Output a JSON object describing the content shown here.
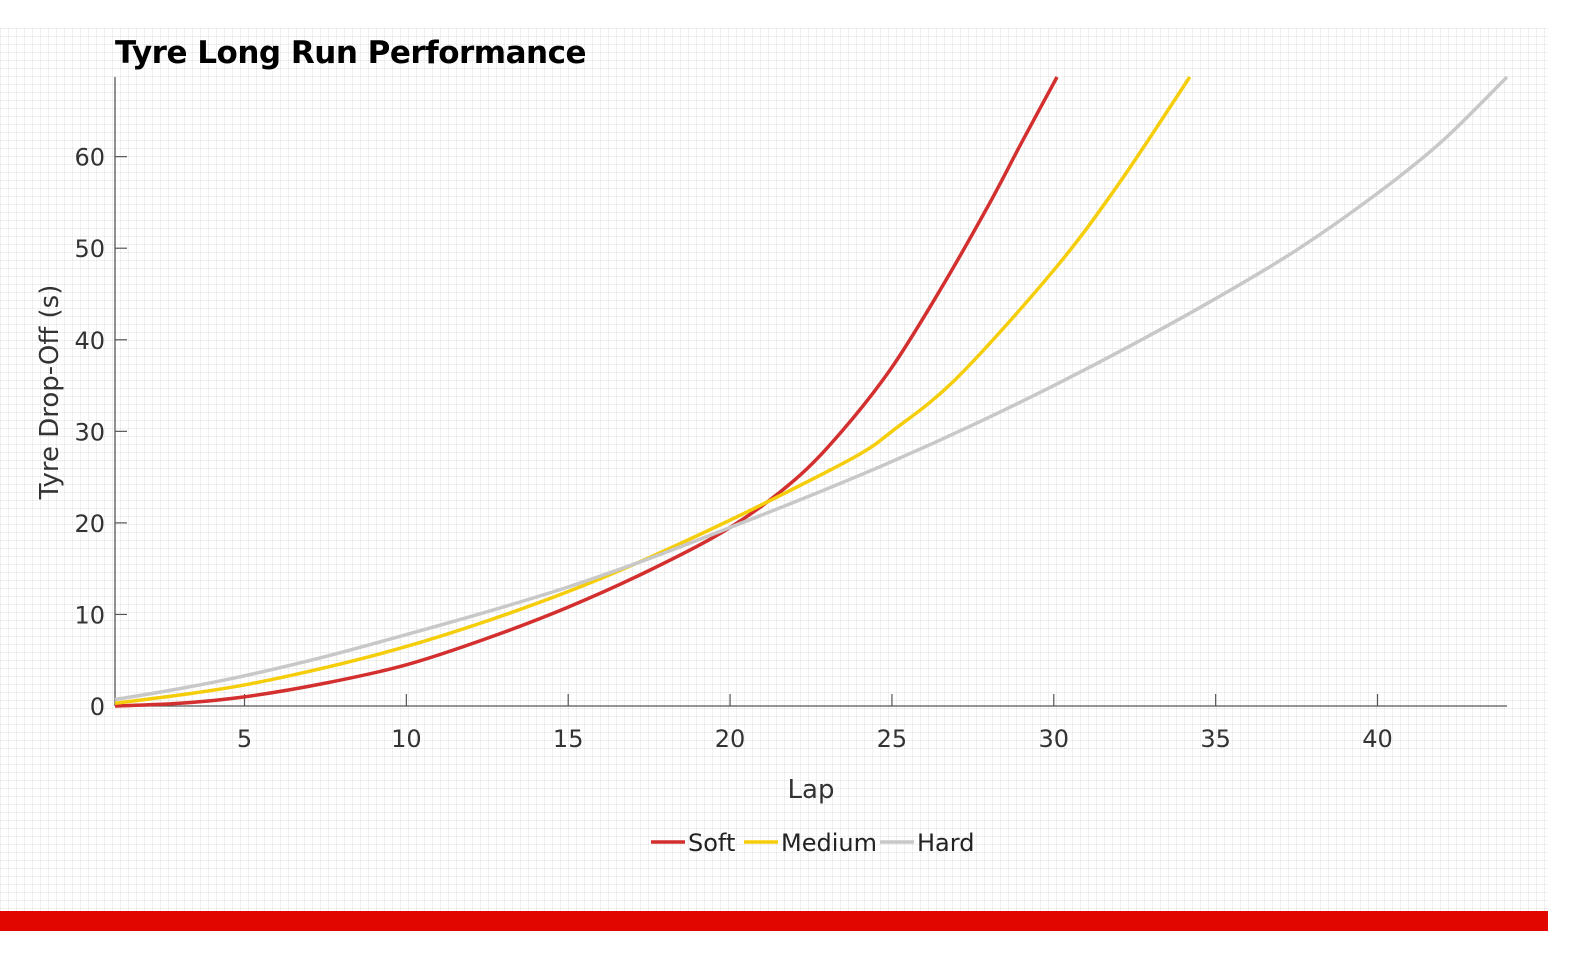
{
  "chart_data": {
    "type": "line",
    "title": "Tyre Long Run Performance",
    "xlabel": "Lap",
    "ylabel": "Tyre Drop-Off (s)",
    "xlim": [
      1,
      44
    ],
    "ylim": [
      0,
      68.7
    ],
    "xticks": [
      5,
      10,
      15,
      20,
      25,
      30,
      35,
      40
    ],
    "yticks": [
      0,
      10,
      20,
      30,
      40,
      50,
      60
    ],
    "grid": false,
    "legend_position": "bottom-center",
    "series": [
      {
        "name": "Soft",
        "color": "#d32f2f",
        "x": [
          1,
          3,
          5,
          7.5,
          10,
          12.5,
          15,
          17.5,
          20,
          22,
          23.5,
          25,
          26.5,
          28,
          29,
          30.1
        ],
        "y": [
          0,
          0.3,
          1,
          2.5,
          4.5,
          7.4,
          10.8,
          14.8,
          19.5,
          24.7,
          30.2,
          37,
          45.5,
          54.8,
          61.5,
          68.7
        ]
      },
      {
        "name": "Medium",
        "color": "#f5cd0a",
        "x": [
          1,
          3,
          5,
          7.5,
          10,
          12.5,
          15,
          17.5,
          20,
          22,
          24,
          25,
          27,
          30,
          32,
          34.2
        ],
        "y": [
          0.3,
          1.2,
          2.3,
          4.2,
          6.5,
          9.3,
          12.5,
          16.2,
          20.3,
          23.8,
          27.5,
          30,
          35.8,
          47.6,
          57,
          68.7
        ]
      },
      {
        "name": "Hard",
        "color": "#c8c8c8",
        "x": [
          1,
          3,
          5,
          7.5,
          10,
          12.5,
          15,
          17.5,
          20,
          22.5,
          25,
          27.5,
          30,
          32.5,
          35,
          37.5,
          40,
          42,
          44
        ],
        "y": [
          0.7,
          1.9,
          3.3,
          5.4,
          7.8,
          10.3,
          13,
          16.1,
          19.5,
          23,
          26.7,
          30.7,
          35,
          39.6,
          44.5,
          49.8,
          56,
          61.7,
          68.7
        ]
      }
    ]
  }
}
